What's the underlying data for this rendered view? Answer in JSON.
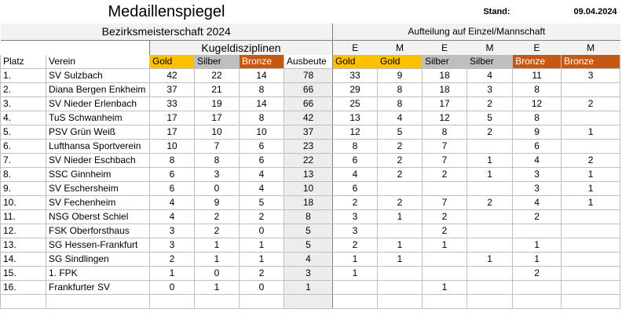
{
  "title": "Medaillenspiegel",
  "stand_label": "Stand:",
  "stand_date": "09.04.2024",
  "subtitle": "Bezirksmeisterschaft 2024",
  "aufteilung": "Aufteilung auf  Einzel/Mannschaft",
  "kugel": "Kugeldisziplinen",
  "em": [
    "E",
    "M",
    "E",
    "M",
    "E",
    "M"
  ],
  "columns": [
    "Platz",
    "Verein",
    "Gold",
    "Silber",
    "Bronze",
    "Ausbeute",
    "Gold",
    "Gold",
    "Silber",
    "Silber",
    "Bronze",
    "Bronze"
  ],
  "rows": [
    {
      "platz": "1.",
      "verein": "SV Sulzbach",
      "v": [
        "42",
        "22",
        "14",
        "78",
        "33",
        "9",
        "18",
        "4",
        "11",
        "3"
      ]
    },
    {
      "platz": "2.",
      "verein": "Diana Bergen Enkheim",
      "v": [
        "37",
        "21",
        "8",
        "66",
        "29",
        "8",
        "18",
        "3",
        "8",
        ""
      ]
    },
    {
      "platz": "3.",
      "verein": "SV Nieder Erlenbach",
      "v": [
        "33",
        "19",
        "14",
        "66",
        "25",
        "8",
        "17",
        "2",
        "12",
        "2"
      ]
    },
    {
      "platz": "4.",
      "verein": "TuS Schwanheim",
      "v": [
        "17",
        "17",
        "8",
        "42",
        "13",
        "4",
        "12",
        "5",
        "8",
        ""
      ]
    },
    {
      "platz": "5.",
      "verein": "PSV Grün Weiß",
      "v": [
        "17",
        "10",
        "10",
        "37",
        "12",
        "5",
        "8",
        "2",
        "9",
        "1"
      ]
    },
    {
      "platz": "6.",
      "verein": "Lufthansa Sportverein",
      "v": [
        "10",
        "7",
        "6",
        "23",
        "8",
        "2",
        "7",
        "",
        "6",
        ""
      ]
    },
    {
      "platz": "7.",
      "verein": "SV Nieder Eschbach",
      "v": [
        "8",
        "8",
        "6",
        "22",
        "6",
        "2",
        "7",
        "1",
        "4",
        "2"
      ]
    },
    {
      "platz": "8.",
      "verein": "SSC Ginnheim",
      "v": [
        "6",
        "3",
        "4",
        "13",
        "4",
        "2",
        "2",
        "1",
        "3",
        "1"
      ]
    },
    {
      "platz": "9.",
      "verein": "SV Eschersheim",
      "v": [
        "6",
        "0",
        "4",
        "10",
        "6",
        "",
        "",
        "",
        "3",
        "1"
      ]
    },
    {
      "platz": "10.",
      "verein": "SV Fechenheim",
      "v": [
        "4",
        "9",
        "5",
        "18",
        "2",
        "2",
        "7",
        "2",
        "4",
        "1"
      ]
    },
    {
      "platz": "11.",
      "verein": "NSG Oberst Schiel",
      "v": [
        "4",
        "2",
        "2",
        "8",
        "3",
        "1",
        "2",
        "",
        "2",
        ""
      ]
    },
    {
      "platz": "12.",
      "verein": "FSK Oberforsthaus",
      "v": [
        "3",
        "2",
        "0",
        "5",
        "3",
        "",
        "2",
        "",
        "",
        ""
      ]
    },
    {
      "platz": "13.",
      "verein": "SG Hessen-Frankfurt",
      "v": [
        "3",
        "1",
        "1",
        "5",
        "2",
        "1",
        "1",
        "",
        "1",
        ""
      ]
    },
    {
      "platz": "14.",
      "verein": "SG Sindlingen",
      "v": [
        "2",
        "1",
        "1",
        "4",
        "1",
        "1",
        "",
        "1",
        "1",
        ""
      ]
    },
    {
      "platz": "15.",
      "verein": "1. FPK",
      "v": [
        "1",
        "0",
        "2",
        "3",
        "1",
        "",
        "",
        "",
        "2",
        ""
      ]
    },
    {
      "platz": "16.",
      "verein": "Frankfurter SV",
      "v": [
        "0",
        "1",
        "0",
        "1",
        "",
        "",
        "1",
        "",
        "",
        ""
      ]
    }
  ]
}
